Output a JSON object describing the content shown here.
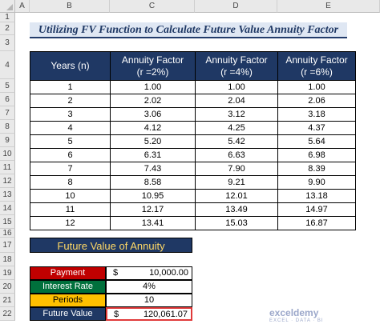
{
  "columns": [
    "A",
    "B",
    "C",
    "D",
    "E"
  ],
  "rows": [
    "1",
    "2",
    "3",
    "4",
    "5",
    "6",
    "7",
    "8",
    "9",
    "10",
    "11",
    "12",
    "13",
    "14",
    "15",
    "16",
    "17",
    "18",
    "19",
    "20",
    "21",
    "22"
  ],
  "title": "Utilizing FV Function to Calculate Future Value Annuity Factor",
  "table": {
    "headers": [
      {
        "line1": "Years (n)",
        "line2": ""
      },
      {
        "line1": "Annuity Factor",
        "line2": "(r =2%)"
      },
      {
        "line1": "Annuity Factor",
        "line2": "(r =4%)"
      },
      {
        "line1": "Annuity Factor",
        "line2": "(r =6%)"
      }
    ],
    "rows": [
      [
        "1",
        "1.00",
        "1.00",
        "1.00"
      ],
      [
        "2",
        "2.02",
        "2.04",
        "2.06"
      ],
      [
        "3",
        "3.06",
        "3.12",
        "3.18"
      ],
      [
        "4",
        "4.12",
        "4.25",
        "4.37"
      ],
      [
        "5",
        "5.20",
        "5.42",
        "5.64"
      ],
      [
        "6",
        "6.31",
        "6.63",
        "6.98"
      ],
      [
        "7",
        "7.43",
        "7.90",
        "8.39"
      ],
      [
        "8",
        "8.58",
        "9.21",
        "9.90"
      ],
      [
        "10",
        "10.95",
        "12.01",
        "13.18"
      ],
      [
        "11",
        "12.17",
        "13.49",
        "14.97"
      ],
      [
        "12",
        "13.41",
        "15.03",
        "16.87"
      ]
    ]
  },
  "fv": {
    "title": "Future Value of Annuity",
    "payment_label": "Payment",
    "payment_currency": "$",
    "payment_value": "10,000.00",
    "rate_label": "Interest Rate",
    "rate_value": "4%",
    "periods_label": "Periods",
    "periods_value": "10",
    "fv_label": "Future Value",
    "fv_currency": "$",
    "fv_value": "120,061.07"
  },
  "watermark": {
    "name": "exceldemy",
    "tagline": "EXCEL · DATA · BI"
  },
  "colors": {
    "header_navy": "#1f3864",
    "title_text": "#1f3864",
    "title_fill": "#dfe7f3",
    "payment_fill": "#c00000",
    "rate_fill": "#00703c",
    "periods_fill": "#ffc000",
    "fv_fill": "#1f3864",
    "fv_title_text": "#ffd966",
    "highlight_border": "#e03a3a"
  }
}
